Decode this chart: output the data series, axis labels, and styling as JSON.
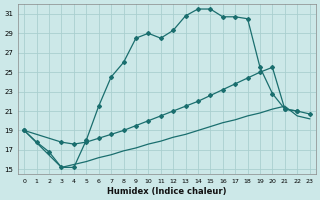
{
  "xlabel": "Humidex (Indice chaleur)",
  "ylabel": "",
  "background_color": "#cce8e8",
  "grid_color": "#aacfcf",
  "line_color": "#1a6e6e",
  "xlim": [
    -0.5,
    23.5
  ],
  "ylim": [
    14.5,
    32
  ],
  "yticks": [
    15,
    17,
    19,
    21,
    23,
    25,
    27,
    29,
    31
  ],
  "xticks": [
    0,
    1,
    2,
    3,
    4,
    5,
    6,
    7,
    8,
    9,
    10,
    11,
    12,
    13,
    14,
    15,
    16,
    17,
    18,
    19,
    20,
    21,
    22,
    23
  ],
  "line1_x": [
    0,
    1,
    2,
    3,
    4,
    5,
    6,
    7,
    8,
    9,
    10,
    11,
    12,
    13,
    14,
    15,
    16,
    17,
    18,
    19,
    20,
    21,
    22
  ],
  "line1_y": [
    19.0,
    17.8,
    16.8,
    15.2,
    15.2,
    18.0,
    21.5,
    24.5,
    26.0,
    28.5,
    29.0,
    28.5,
    29.3,
    30.8,
    31.5,
    31.5,
    30.7,
    30.7,
    30.5,
    25.5,
    22.8,
    21.2,
    21.0
  ],
  "line2_x": [
    0,
    3,
    4,
    5,
    6,
    7,
    8,
    9,
    10,
    11,
    12,
    13,
    14,
    15,
    16,
    17,
    18,
    19,
    20,
    21,
    22,
    23
  ],
  "line2_y": [
    19.0,
    17.8,
    17.6,
    17.8,
    18.2,
    18.6,
    19.0,
    19.5,
    20.0,
    20.5,
    21.0,
    21.5,
    22.0,
    22.6,
    23.2,
    23.8,
    24.4,
    25.0,
    25.5,
    21.2,
    21.0,
    20.7
  ],
  "line3_x": [
    0,
    3,
    4,
    5,
    6,
    7,
    8,
    9,
    10,
    11,
    12,
    13,
    14,
    15,
    16,
    17,
    18,
    19,
    20,
    21,
    22,
    23
  ],
  "line3_y": [
    19.0,
    15.2,
    15.5,
    15.8,
    16.2,
    16.5,
    16.9,
    17.2,
    17.6,
    17.9,
    18.3,
    18.6,
    19.0,
    19.4,
    19.8,
    20.1,
    20.5,
    20.8,
    21.2,
    21.5,
    20.5,
    20.2
  ]
}
